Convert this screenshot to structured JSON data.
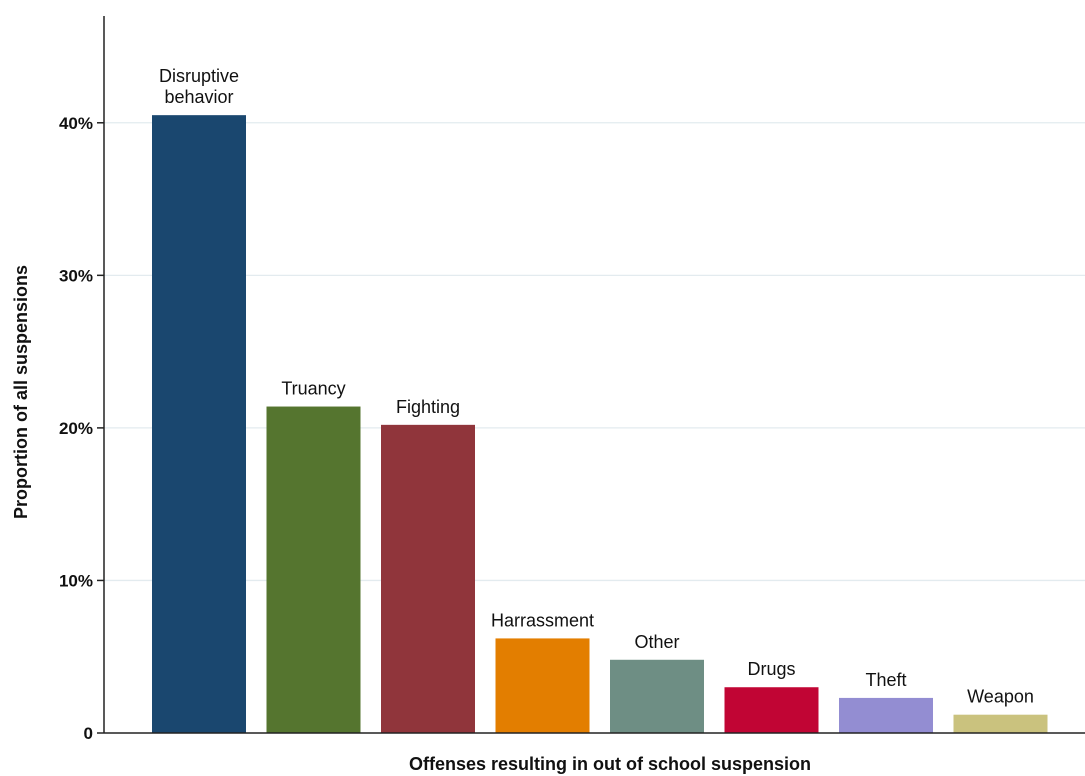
{
  "chart_data": {
    "type": "bar",
    "title": "",
    "xlabel": "Offenses resulting in out of school suspension",
    "ylabel": "Proportion of all suspensions",
    "ylim": [
      0,
      47
    ],
    "yticks": [
      {
        "value": 0,
        "label": "0"
      },
      {
        "value": 10,
        "label": "10%"
      },
      {
        "value": 20,
        "label": "20%"
      },
      {
        "value": 30,
        "label": "30%"
      },
      {
        "value": 40,
        "label": "40%"
      }
    ],
    "grid": true,
    "legend": "none",
    "categories": [
      "Disruptive behavior",
      "Truancy",
      "Fighting",
      "Harrassment",
      "Other",
      "Drugs",
      "Theft",
      "Weapon"
    ],
    "label_lines": [
      [
        "Disruptive",
        "behavior"
      ],
      [
        "Truancy"
      ],
      [
        "Fighting"
      ],
      [
        "Harrassment"
      ],
      [
        "Other"
      ],
      [
        "Drugs"
      ],
      [
        "Theft"
      ],
      [
        "Weapon"
      ]
    ],
    "values": [
      40.5,
      21.4,
      20.2,
      6.2,
      4.8,
      3.0,
      2.3,
      1.2
    ],
    "colors": [
      "#1a476f",
      "#55752f",
      "#90353b",
      "#e37e00",
      "#6e8e84",
      "#c10534",
      "#938dd2",
      "#cac27e"
    ]
  }
}
